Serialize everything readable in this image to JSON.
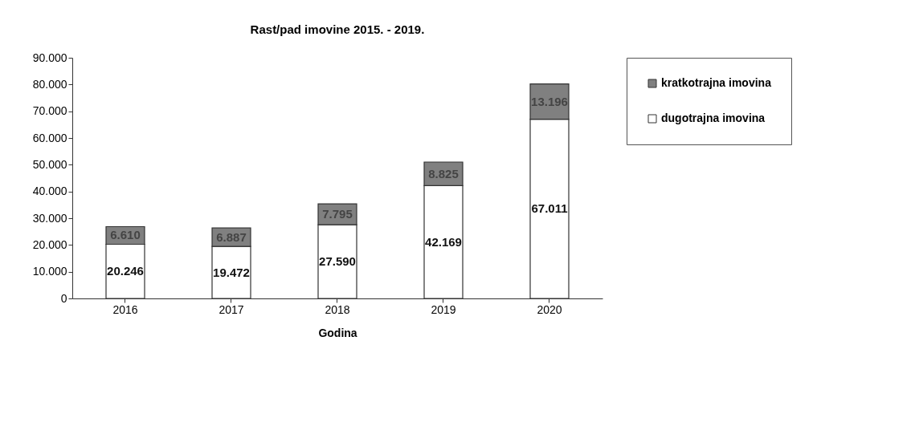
{
  "chart_data": {
    "type": "bar",
    "title": "Rast/pad imovine 2015. - 2019.",
    "xlabel": "Godina",
    "stacked": true,
    "legend": "top right",
    "grid": false,
    "categories": [
      "2016",
      "2017",
      "2018",
      "2019",
      "2020"
    ],
    "series": [
      {
        "name": "dugotrajna imovina",
        "color": "#ffffff",
        "values": [
          20246,
          19472,
          27590,
          42169,
          67011
        ],
        "value_labels": [
          "20.246",
          "19.472",
          "27.590",
          "42.169",
          "67.011"
        ]
      },
      {
        "name": "kratkotrajna imovina",
        "color": "#808080",
        "values": [
          6610,
          6887,
          7795,
          8825,
          13196
        ],
        "value_labels": [
          "6.610",
          "6.887",
          "7.795",
          "8.825",
          "13.196"
        ]
      }
    ],
    "ylim": [
      0,
      90000
    ],
    "yticks": [
      {
        "value": 0,
        "label": "0"
      },
      {
        "value": 10000,
        "label": "10.000"
      },
      {
        "value": 20000,
        "label": "20.000"
      },
      {
        "value": 30000,
        "label": "30.000"
      },
      {
        "value": 40000,
        "label": "40.000"
      },
      {
        "value": 50000,
        "label": "50.000"
      },
      {
        "value": 60000,
        "label": "60.000"
      },
      {
        "value": 70000,
        "label": "70.000"
      },
      {
        "value": 80000,
        "label": "80.000"
      },
      {
        "value": 90000,
        "label": "90.000"
      }
    ]
  }
}
